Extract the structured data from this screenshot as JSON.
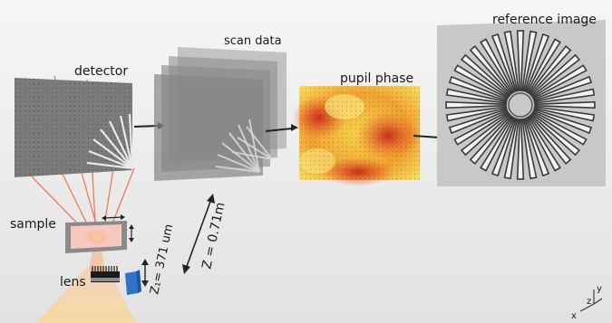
{
  "labels": {
    "detector": "detector",
    "scan_data": "scan data",
    "pupil_phase": "pupil phase",
    "reference_image": "reference image",
    "sample": "sample",
    "lens": "lens",
    "z1": "Z₁= 371 um",
    "z": "Z = 0.71m"
  },
  "axes": {
    "x": "x",
    "y": "y",
    "z": "z"
  },
  "colors": {
    "beam": "#f07a5a",
    "panel": "#8f8f8f",
    "pupil_hot": "#d4381c",
    "pupil_warm": "#f7c238",
    "lens_holder": "#2f73c9"
  },
  "reference_image": {
    "spokes": 36
  }
}
